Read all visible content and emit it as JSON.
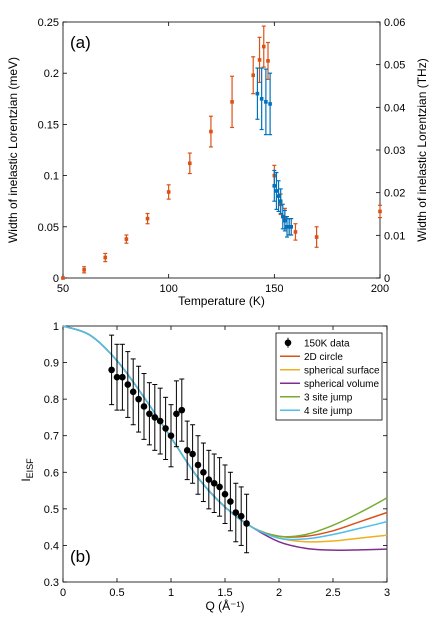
{
  "chart_data": [
    {
      "type": "scatter",
      "panel_label": "(a)",
      "xlabel": "Temperature (K)",
      "ylabel": "Width of inelastic Lorentzian (meV)",
      "y2label": "Width of inelastic Lorentzian (THz)",
      "xlim": [
        50,
        200
      ],
      "ylim": [
        0,
        0.25
      ],
      "y2lim": [
        0,
        0.06
      ],
      "xticks": [
        50,
        100,
        150,
        200
      ],
      "yticks": [
        0,
        0.05,
        0.1,
        0.15,
        0.2,
        0.25
      ],
      "yticklabels": [
        "0",
        "0.05",
        "0.1",
        "0.15",
        "0.2",
        "0.25"
      ],
      "y2ticks": [
        0,
        0.01,
        0.02,
        0.03,
        0.04,
        0.05,
        0.06
      ],
      "y2ticklabels": [
        "0",
        "0.01",
        "0.02",
        "0.03",
        "0.04",
        "0.05",
        "0.06"
      ],
      "grid": false,
      "colors": {
        "orange": "#d95319",
        "blue": "#0072bd"
      },
      "series": [
        {
          "color": "#d95319",
          "x": [
            50,
            60,
            70,
            80,
            90,
            100,
            110,
            120,
            130,
            140,
            143,
            145,
            147,
            150,
            153,
            155,
            157,
            160,
            170,
            200
          ],
          "y": [
            0.0,
            0.008,
            0.02,
            0.038,
            0.058,
            0.084,
            0.112,
            0.143,
            0.172,
            0.198,
            0.213,
            0.226,
            0.212,
            0.1,
            0.072,
            0.058,
            0.05,
            0.045,
            0.04,
            0.065
          ],
          "err": [
            0.0,
            0.003,
            0.004,
            0.004,
            0.005,
            0.007,
            0.01,
            0.015,
            0.025,
            0.018,
            0.022,
            0.02,
            0.018,
            0.01,
            0.01,
            0.01,
            0.008,
            0.008,
            0.01,
            0.006
          ]
        },
        {
          "color": "#0072bd",
          "x": [
            142,
            144,
            146,
            148,
            150,
            151,
            152,
            153,
            154,
            155,
            156,
            157,
            158
          ],
          "y": [
            0.18,
            0.175,
            0.172,
            0.17,
            0.09,
            0.085,
            0.08,
            0.075,
            0.06,
            0.056,
            0.05,
            0.05,
            0.05
          ],
          "err": [
            0.025,
            0.03,
            0.032,
            0.03,
            0.015,
            0.018,
            0.015,
            0.012,
            0.012,
            0.01,
            0.01,
            0.008,
            0.008
          ]
        }
      ]
    },
    {
      "type": "line",
      "panel_label": "(b)",
      "xlabel": "Q (Å⁻¹)",
      "ylabel_main": "I",
      "ylabel_sub": "EISF",
      "xlim": [
        0,
        3
      ],
      "ylim": [
        0.3,
        1
      ],
      "xticks": [
        0,
        0.5,
        1,
        1.5,
        2,
        2.5,
        3
      ],
      "xticklabels": [
        "0",
        "0.5",
        "1",
        "1.5",
        "2",
        "2.5",
        "3"
      ],
      "yticks": [
        0.3,
        0.4,
        0.5,
        0.6,
        0.7,
        0.8,
        0.9,
        1
      ],
      "yticklabels": [
        "0.3",
        "0.4",
        "0.5",
        "0.6",
        "0.7",
        "0.8",
        "0.9",
        "1"
      ],
      "grid": false,
      "legend_position": "top-right",
      "points": {
        "name": "150K data",
        "color": "#000000",
        "x": [
          0.45,
          0.5,
          0.55,
          0.6,
          0.65,
          0.7,
          0.75,
          0.8,
          0.85,
          0.9,
          0.95,
          1.0,
          1.05,
          1.1,
          1.15,
          1.2,
          1.25,
          1.3,
          1.35,
          1.4,
          1.45,
          1.5,
          1.55,
          1.6,
          1.65,
          1.7
        ],
        "y": [
          0.88,
          0.86,
          0.86,
          0.84,
          0.82,
          0.8,
          0.78,
          0.76,
          0.75,
          0.74,
          0.72,
          0.7,
          0.76,
          0.77,
          0.66,
          0.65,
          0.62,
          0.6,
          0.58,
          0.57,
          0.56,
          0.54,
          0.52,
          0.49,
          0.48,
          0.46
        ],
        "err": [
          0.095,
          0.09,
          0.09,
          0.09,
          0.09,
          0.09,
          0.09,
          0.085,
          0.09,
          0.09,
          0.085,
          0.085,
          0.09,
          0.085,
          0.08,
          0.08,
          0.08,
          0.08,
          0.08,
          0.08,
          0.08,
          0.08,
          0.08,
          0.08,
          0.08,
          0.08
        ]
      },
      "series": [
        {
          "name": "2D circle",
          "color": "#d95319",
          "x": [
            0,
            0.25,
            0.5,
            0.75,
            1,
            1.25,
            1.5,
            1.75,
            2,
            2.25,
            2.5,
            2.75,
            3
          ],
          "y": [
            1.0,
            0.975,
            0.905,
            0.805,
            0.695,
            0.585,
            0.505,
            0.45,
            0.425,
            0.425,
            0.44,
            0.465,
            0.49
          ]
        },
        {
          "name": "spherical surface",
          "color": "#edb120",
          "x": [
            0,
            0.25,
            0.5,
            0.75,
            1,
            1.25,
            1.5,
            1.75,
            2,
            2.25,
            2.5,
            2.75,
            3
          ],
          "y": [
            1.0,
            0.975,
            0.905,
            0.805,
            0.695,
            0.585,
            0.505,
            0.45,
            0.42,
            0.41,
            0.412,
            0.42,
            0.428
          ]
        },
        {
          "name": "spherical volume",
          "color": "#7e2f8e",
          "x": [
            0,
            0.25,
            0.5,
            0.75,
            1,
            1.25,
            1.5,
            1.75,
            2,
            2.25,
            2.5,
            2.75,
            3
          ],
          "y": [
            1.0,
            0.975,
            0.905,
            0.805,
            0.695,
            0.585,
            0.505,
            0.45,
            0.41,
            0.392,
            0.387,
            0.388,
            0.39
          ]
        },
        {
          "name": "3 site jump",
          "color": "#77ac30",
          "x": [
            0,
            0.25,
            0.5,
            0.75,
            1,
            1.25,
            1.5,
            1.75,
            2,
            2.25,
            2.5,
            2.75,
            3
          ],
          "y": [
            1.0,
            0.975,
            0.905,
            0.805,
            0.695,
            0.585,
            0.505,
            0.45,
            0.425,
            0.43,
            0.455,
            0.49,
            0.53
          ]
        },
        {
          "name": "4 site jump",
          "color": "#4dbeee",
          "x": [
            0,
            0.25,
            0.5,
            0.75,
            1,
            1.25,
            1.5,
            1.75,
            2,
            2.25,
            2.5,
            2.75,
            3
          ],
          "y": [
            1.0,
            0.975,
            0.905,
            0.805,
            0.695,
            0.585,
            0.505,
            0.45,
            0.42,
            0.418,
            0.43,
            0.447,
            0.465
          ]
        }
      ]
    }
  ]
}
